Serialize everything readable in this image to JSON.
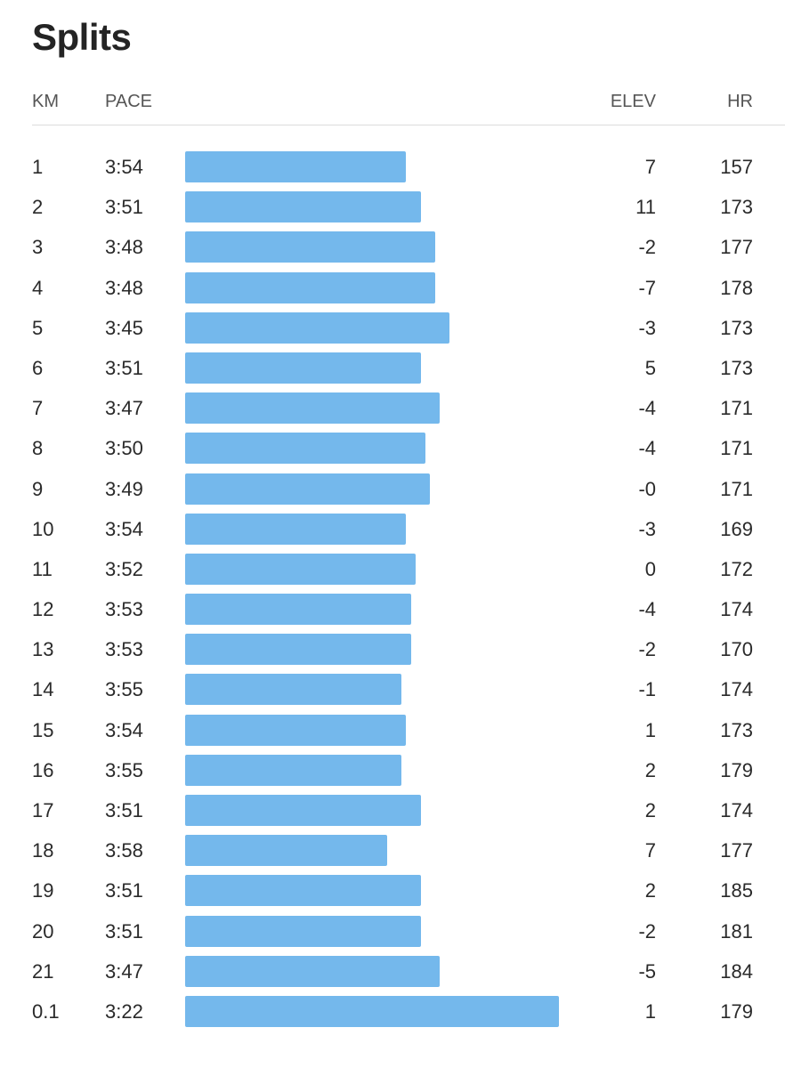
{
  "title": "Splits",
  "columns": {
    "km": "KM",
    "pace": "PACE",
    "elev": "ELEV",
    "hr": "HR"
  },
  "colors": {
    "bar": "#74b8ec",
    "text": "#242424",
    "divider": "#dcdcdc"
  },
  "pace_bar_scale": {
    "fastest_seconds": 202,
    "fastest_bar_fraction": 1.0
  },
  "splits": [
    {
      "km": "1",
      "pace": "3:54",
      "elev": "7",
      "hr": "157"
    },
    {
      "km": "2",
      "pace": "3:51",
      "elev": "11",
      "hr": "173"
    },
    {
      "km": "3",
      "pace": "3:48",
      "elev": "-2",
      "hr": "177"
    },
    {
      "km": "4",
      "pace": "3:48",
      "elev": "-7",
      "hr": "178"
    },
    {
      "km": "5",
      "pace": "3:45",
      "elev": "-3",
      "hr": "173"
    },
    {
      "km": "6",
      "pace": "3:51",
      "elev": "5",
      "hr": "173"
    },
    {
      "km": "7",
      "pace": "3:47",
      "elev": "-4",
      "hr": "171"
    },
    {
      "km": "8",
      "pace": "3:50",
      "elev": "-4",
      "hr": "171"
    },
    {
      "km": "9",
      "pace": "3:49",
      "elev": "-0",
      "hr": "171"
    },
    {
      "km": "10",
      "pace": "3:54",
      "elev": "-3",
      "hr": "169"
    },
    {
      "km": "11",
      "pace": "3:52",
      "elev": "0",
      "hr": "172"
    },
    {
      "km": "12",
      "pace": "3:53",
      "elev": "-4",
      "hr": "174"
    },
    {
      "km": "13",
      "pace": "3:53",
      "elev": "-2",
      "hr": "170"
    },
    {
      "km": "14",
      "pace": "3:55",
      "elev": "-1",
      "hr": "174"
    },
    {
      "km": "15",
      "pace": "3:54",
      "elev": "1",
      "hr": "173"
    },
    {
      "km": "16",
      "pace": "3:55",
      "elev": "2",
      "hr": "179"
    },
    {
      "km": "17",
      "pace": "3:51",
      "elev": "2",
      "hr": "174"
    },
    {
      "km": "18",
      "pace": "3:58",
      "elev": "7",
      "hr": "177"
    },
    {
      "km": "19",
      "pace": "3:51",
      "elev": "2",
      "hr": "185"
    },
    {
      "km": "20",
      "pace": "3:51",
      "elev": "-2",
      "hr": "181"
    },
    {
      "km": "21",
      "pace": "3:47",
      "elev": "-5",
      "hr": "184"
    },
    {
      "km": "0.1",
      "pace": "3:22",
      "elev": "1",
      "hr": "179"
    }
  ]
}
